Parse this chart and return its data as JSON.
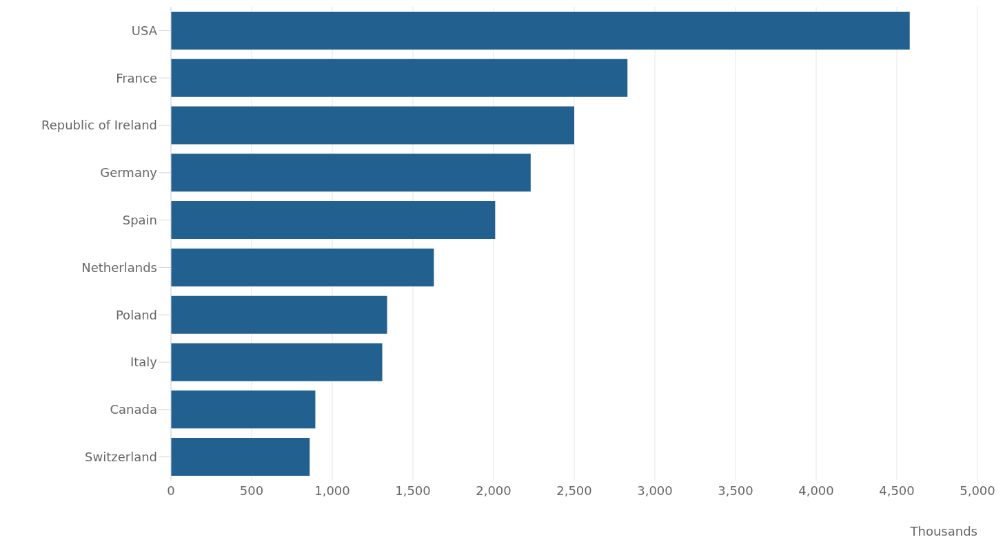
{
  "chart_data": {
    "type": "bar",
    "orientation": "horizontal",
    "xlabel": "Thousands",
    "categories": [
      "USA",
      "France",
      "Republic of Ireland",
      "Germany",
      "Spain",
      "Netherlands",
      "Poland",
      "Italy",
      "Canada",
      "Switzerland"
    ],
    "values": [
      4580,
      2830,
      2500,
      2230,
      2010,
      1630,
      1340,
      1310,
      895,
      860
    ],
    "color": "#22618f",
    "xlim": [
      0,
      5000
    ],
    "xticks": [
      0,
      500,
      {
        "value": 1000,
        "label": "1,000"
      },
      {
        "value": 1500,
        "label": "1,500"
      },
      {
        "value": 2000,
        "label": "2,000"
      },
      {
        "value": 2500,
        "label": "2,500"
      },
      {
        "value": 3000,
        "label": "3,000"
      },
      {
        "value": 3500,
        "label": "3,500"
      },
      {
        "value": 4000,
        "label": "4,000"
      },
      {
        "value": 4500,
        "label": "4,500"
      },
      {
        "value": 5000,
        "label": "5,000"
      }
    ],
    "grid": "x",
    "legend": false
  }
}
